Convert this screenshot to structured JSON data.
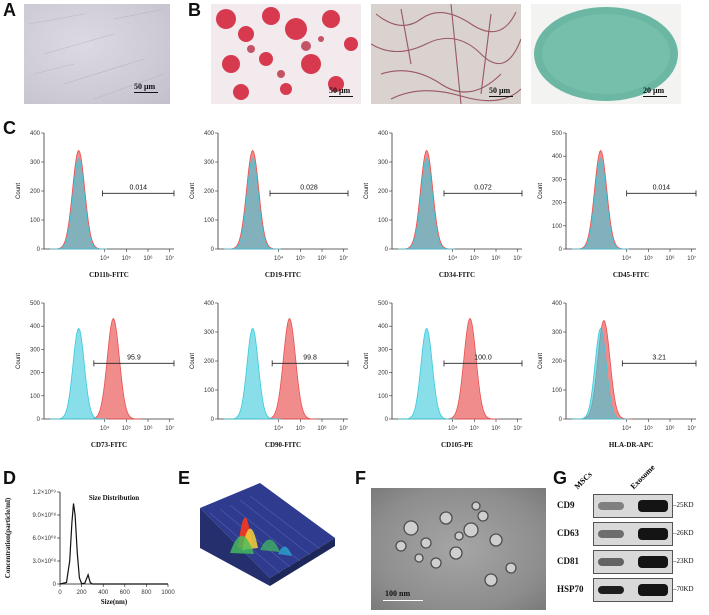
{
  "panels": {
    "A": {
      "letter": "A",
      "scale": "50 μm"
    },
    "B": {
      "letter": "B",
      "scales": [
        "50 μm",
        "50 μm",
        "20 μm"
      ]
    },
    "C": {
      "letter": "C"
    },
    "D": {
      "letter": "D"
    },
    "E": {
      "letter": "E"
    },
    "F": {
      "letter": "F",
      "scale": "100 nm"
    },
    "G": {
      "letter": "G"
    }
  },
  "colors": {
    "isotype": "#39c9dc",
    "sample": "#e8504f"
  },
  "chart_data": [
    {
      "type": "histogram",
      "xlabel": "CD11b-FITC",
      "ylabel": "Count",
      "yticks": [
        0,
        100,
        200,
        300,
        400
      ],
      "gate_value": "0.014"
    },
    {
      "type": "histogram",
      "xlabel": "CD19-FITC",
      "ylabel": "Count",
      "yticks": [
        0,
        100,
        200,
        300,
        400
      ],
      "gate_value": "0.028"
    },
    {
      "type": "histogram",
      "xlabel": "CD34-FITC",
      "ylabel": "Count",
      "yticks": [
        0,
        100,
        200,
        300,
        400
      ],
      "gate_value": "0.072"
    },
    {
      "type": "histogram",
      "xlabel": "CD45-FITC",
      "ylabel": "Count",
      "yticks": [
        0,
        100,
        200,
        300,
        400,
        500
      ],
      "gate_value": "0.014"
    },
    {
      "type": "histogram",
      "xlabel": "CD73-FITC",
      "ylabel": "Count",
      "yticks": [
        0,
        100,
        200,
        300,
        400,
        500
      ],
      "gate_value": "95.9"
    },
    {
      "type": "histogram",
      "xlabel": "CD90-FITC",
      "ylabel": "Count",
      "yticks": [
        0,
        100,
        200,
        300,
        400
      ],
      "gate_value": "99.8"
    },
    {
      "type": "histogram",
      "xlabel": "CD105-PE",
      "ylabel": "Count",
      "yticks": [
        0,
        100,
        200,
        300,
        400,
        500
      ],
      "gate_value": "100.0"
    },
    {
      "type": "histogram",
      "xlabel": "HLA-DR-APC",
      "ylabel": "Count",
      "yticks": [
        0,
        100,
        200,
        300,
        400
      ],
      "gate_value": "3.21"
    },
    {
      "type": "line",
      "title": "Size Distribution",
      "xlabel": "Size(nm)",
      "ylabel": "Concentration(particle/ml)",
      "xticks": [
        0,
        200,
        400,
        600,
        800,
        1000
      ],
      "yticks": [
        "0",
        "3.0×10^08",
        "6.0×10^08",
        "9.0×10^08",
        "1.2×10^09"
      ],
      "xlim": [
        0,
        1000
      ],
      "ylim": [
        0,
        1200000000
      ],
      "x": [
        0,
        60,
        90,
        110,
        125,
        140,
        160,
        180,
        200,
        230,
        260,
        280,
        300,
        400,
        600,
        800,
        1000
      ],
      "y": [
        0,
        20000000,
        300000000,
        800000000,
        1050000000,
        900000000,
        400000000,
        80000000,
        5000000,
        10000000,
        120000000,
        20000000,
        0,
        0,
        0,
        0,
        0
      ]
    }
  ],
  "blot": {
    "columns": [
      "MSCs",
      "Exosome"
    ],
    "rows": [
      {
        "name": "CD9",
        "kd": "25KD"
      },
      {
        "name": "CD63",
        "kd": "26KD"
      },
      {
        "name": "CD81",
        "kd": "23KD"
      },
      {
        "name": "HSP70",
        "kd": "70KD"
      }
    ]
  }
}
